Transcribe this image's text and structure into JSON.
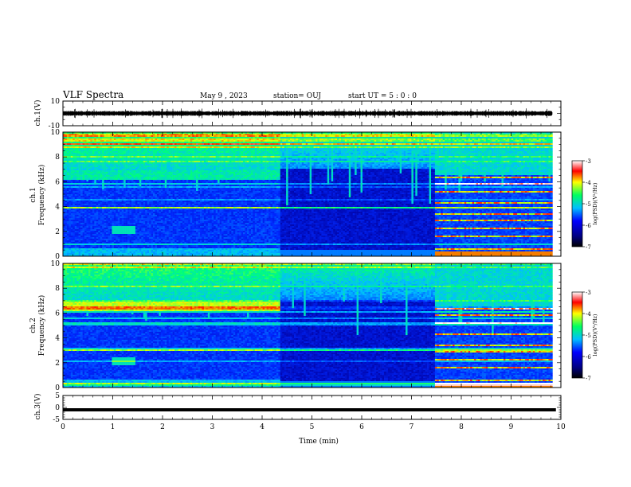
{
  "header": {
    "title": "VLF Spectra",
    "date": "May 9 , 2023",
    "station": "station= OUJ",
    "start": "start UT = 5 : 0 : 0"
  },
  "chart_data": [
    {
      "type": "line",
      "name": "ch1-waveform",
      "ylabel": "ch.1(V)",
      "ylim": [
        -10,
        10
      ],
      "y_ticks": [
        "10",
        "-10"
      ],
      "xlim": [
        0,
        10
      ],
      "baseline": 0
    },
    {
      "type": "heatmap",
      "name": "ch1-spectrogram",
      "ylabel": "ch.1 Frequency (kHz)",
      "ylim": [
        0,
        10
      ],
      "y_ticks": [
        "0",
        "2",
        "4",
        "6",
        "8",
        "10"
      ],
      "xlim": [
        0,
        10
      ],
      "data_end_min": 9.83,
      "colorbar": {
        "label": "log(PSD)(V²/Hz)",
        "range": [
          -7,
          -3
        ],
        "ticks": [
          "-3",
          "-4",
          "-5",
          "-6",
          "-7"
        ]
      }
    },
    {
      "type": "heatmap",
      "name": "ch2-spectrogram",
      "ylabel": "ch.2 Frequency (kHz)",
      "ylim": [
        0,
        10
      ],
      "y_ticks": [
        "0",
        "2",
        "4",
        "6",
        "8",
        "10"
      ],
      "xlim": [
        0,
        10
      ],
      "data_end_min": 9.83,
      "colorbar": {
        "label": "log(PSD)(V²/Hz)",
        "range": [
          -7,
          -3
        ],
        "ticks": [
          "-3",
          "-4",
          "-5",
          "-6",
          "-7"
        ]
      }
    },
    {
      "type": "line",
      "name": "ch3-signal",
      "ylabel": "ch.3(V)",
      "ylim": [
        -5,
        5
      ],
      "y_ticks": [
        "5",
        "0",
        "-5"
      ],
      "xlim": [
        0,
        10
      ],
      "baseline": -1
    }
  ],
  "x_axis": {
    "label": "Time (min)",
    "ticks": [
      "0",
      "1",
      "2",
      "3",
      "4",
      "5",
      "6",
      "7",
      "8",
      "9",
      "10"
    ]
  },
  "colors": {
    "background": "#ffffff",
    "axis": "#000000",
    "colormap": [
      "#000080",
      "#0000ff",
      "#00bfff",
      "#00ff80",
      "#ffff00",
      "#ff0000",
      "#ffffff"
    ]
  }
}
